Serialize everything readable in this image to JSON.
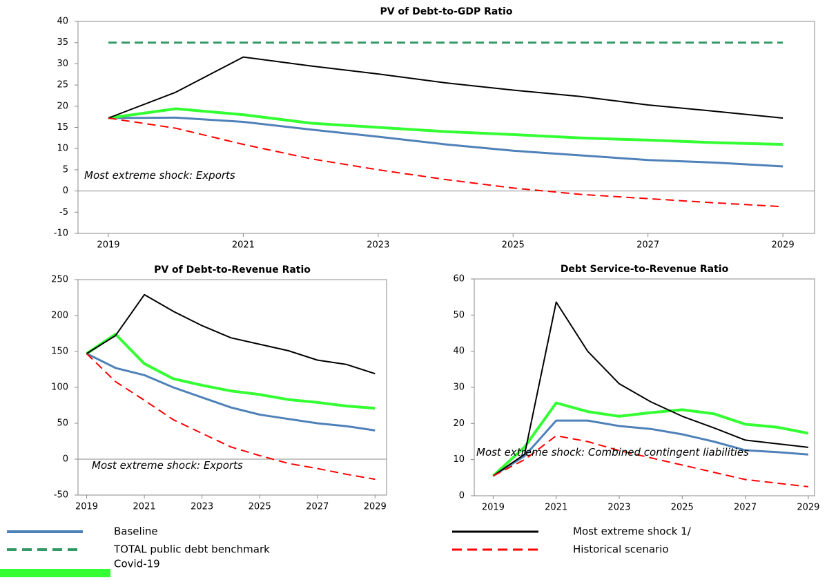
{
  "chart_data": [
    {
      "type": "line",
      "title": "PV of Debt-to-GDP Ratio",
      "annotation": "Most extreme shock: Exports",
      "x": [
        2019,
        2020,
        2021,
        2022,
        2023,
        2024,
        2025,
        2026,
        2027,
        2028,
        2029
      ],
      "xlim": [
        2018.55,
        2029.47
      ],
      "xticks": [
        2019,
        2021,
        2023,
        2025,
        2027,
        2029
      ],
      "ylim": [
        -10,
        40
      ],
      "yticks": [
        -10,
        -5,
        0,
        5,
        10,
        15,
        20,
        25,
        30,
        35,
        40
      ],
      "series": [
        {
          "name": "Baseline",
          "color": "#4f81b9",
          "linewidth": 3,
          "dashed": false,
          "values": [
            17.2,
            17.3,
            16.3,
            14.5,
            12.8,
            11.0,
            9.5,
            8.4,
            7.3,
            6.7,
            5.8
          ]
        },
        {
          "name": "TOTAL public debt benchmark",
          "color": "#339966",
          "linewidth": 3,
          "dashed": true,
          "values": [
            35,
            35,
            35,
            35,
            35,
            35,
            35,
            35,
            35,
            35,
            35
          ]
        },
        {
          "name": "Covid-19",
          "color": "#33ff33",
          "linewidth": 4,
          "dashed": false,
          "values": [
            17.2,
            19.4,
            18.0,
            16.0,
            15.0,
            14.0,
            13.3,
            12.5,
            12.0,
            11.4,
            11.0
          ]
        },
        {
          "name": "Most extreme shock 1/",
          "color": "#000000",
          "linewidth": 2,
          "dashed": false,
          "values": [
            17.2,
            23.3,
            31.6,
            29.5,
            27.6,
            25.5,
            23.8,
            22.3,
            20.3,
            18.8,
            17.2
          ]
        },
        {
          "name": "Historical scenario",
          "color": "#ff0000",
          "linewidth": 2,
          "dashed": true,
          "values": [
            17.2,
            14.8,
            11.0,
            7.6,
            5.0,
            2.7,
            0.7,
            -0.8,
            -1.8,
            -2.8,
            -3.7
          ]
        }
      ]
    },
    {
      "type": "line",
      "title": "PV of Debt-to-Revenue Ratio",
      "annotation": "Most extreme shock: Exports",
      "x": [
        2019,
        2020,
        2021,
        2022,
        2023,
        2024,
        2025,
        2026,
        2027,
        2028,
        2029
      ],
      "xlim": [
        2018.7,
        2029.4
      ],
      "xticks": [
        2019,
        2021,
        2023,
        2025,
        2027,
        2029
      ],
      "ylim": [
        -50,
        250
      ],
      "yticks": [
        -50,
        0,
        50,
        100,
        150,
        200,
        250
      ],
      "series": [
        {
          "name": "Baseline",
          "color": "#4f81b9",
          "linewidth": 3,
          "dashed": false,
          "values": [
            147,
            127,
            117,
            100,
            86,
            72,
            62,
            56,
            50,
            46,
            40
          ]
        },
        {
          "name": "Covid-19",
          "color": "#33ff33",
          "linewidth": 4,
          "dashed": false,
          "values": [
            147,
            174,
            133,
            112,
            103,
            95,
            90,
            83,
            79,
            74,
            71
          ]
        },
        {
          "name": "Most extreme shock 1/",
          "color": "#000000",
          "linewidth": 2,
          "dashed": false,
          "values": [
            147,
            172,
            229,
            206,
            186,
            169,
            160,
            151,
            138,
            132,
            119
          ]
        },
        {
          "name": "Historical scenario",
          "color": "#ff0000",
          "linewidth": 2,
          "dashed": true,
          "values": [
            147,
            108,
            82,
            55,
            36,
            17,
            5,
            -6,
            -13,
            -21,
            -28
          ]
        }
      ]
    },
    {
      "type": "line",
      "title": "Debt Service-to-Revenue Ratio",
      "annotation": "Most extreme shock: Combined contingent liabilities",
      "x": [
        2019,
        2020,
        2021,
        2022,
        2023,
        2024,
        2025,
        2026,
        2027,
        2028,
        2029
      ],
      "xlim": [
        2018.4,
        2029.2
      ],
      "xticks": [
        2019,
        2021,
        2023,
        2025,
        2027,
        2029
      ],
      "ylim": [
        0,
        60
      ],
      "yticks": [
        0,
        10,
        20,
        30,
        40,
        50,
        60
      ],
      "series": [
        {
          "name": "Baseline",
          "color": "#4f81b9",
          "linewidth": 3,
          "dashed": false,
          "values": [
            5.5,
            11,
            20.8,
            20.8,
            19.3,
            18.5,
            17.0,
            15.0,
            12.6,
            12.1,
            11.4
          ]
        },
        {
          "name": "Covid-19",
          "color": "#33ff33",
          "linewidth": 4,
          "dashed": false,
          "values": [
            5.5,
            13.5,
            25.7,
            23.3,
            22,
            23,
            23.8,
            22.7,
            19.8,
            19,
            17.3
          ]
        },
        {
          "name": "Most extreme shock 1/",
          "color": "#000000",
          "linewidth": 2,
          "dashed": false,
          "values": [
            5.5,
            11.5,
            53.6,
            40,
            31,
            26,
            22,
            18.8,
            15.4,
            14.4,
            13.4
          ]
        },
        {
          "name": "Historical scenario",
          "color": "#ff0000",
          "linewidth": 2,
          "dashed": true,
          "values": [
            5.5,
            10,
            16.6,
            15,
            12.5,
            10.5,
            8.5,
            6.5,
            4.5,
            3.5,
            2.5
          ]
        }
      ]
    }
  ]
}
